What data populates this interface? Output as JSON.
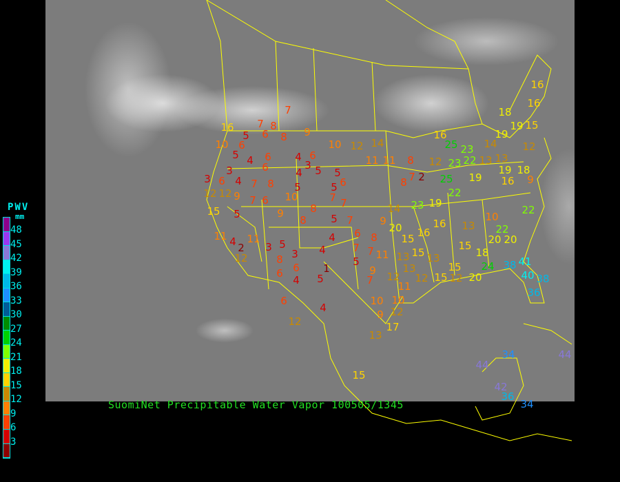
{
  "title": "SuomiNet Precipitable Water Vapor 100505/1345",
  "legend": {
    "title": "PWV",
    "unit": "mm",
    "labels": [
      "48",
      "45",
      "42",
      "39",
      "36",
      "33",
      "30",
      "27",
      "24",
      "21",
      "18",
      "15",
      "12",
      "9",
      "6",
      "3"
    ],
    "colors": [
      "#8c008c",
      "#9a38f0",
      "#8878d8",
      "#00f0f0",
      "#00b8e8",
      "#1e90ff",
      "#005c98",
      "#008c00",
      "#00d000",
      "#80ff00",
      "#f0f000",
      "#ffd400",
      "#c88a00",
      "#ff8000",
      "#ff4000",
      "#d40000",
      "#8c0000"
    ]
  },
  "boundary_color": "#ffff00",
  "stations": [
    7,
    7,
    8,
    9,
    6,
    5,
    8,
    10,
    12,
    14,
    16,
    10,
    6,
    5,
    3,
    4,
    6,
    4,
    6,
    3,
    6,
    4,
    5,
    5,
    11,
    11,
    8,
    3,
    6,
    4,
    7,
    8,
    5,
    5,
    6,
    12,
    12,
    9,
    7,
    6,
    10,
    7,
    7,
    8,
    9,
    5,
    15,
    8,
    5,
    7,
    11,
    4,
    2,
    12,
    11,
    3,
    5,
    8,
    3,
    4,
    4,
    1,
    6,
    6,
    4,
    5,
    7,
    5,
    6,
    8,
    7,
    9,
    7,
    11,
    13,
    15,
    9,
    20,
    14,
    15,
    16,
    12,
    11,
    13,
    12,
    10,
    10,
    9,
    12,
    13,
    17,
    6,
    4,
    12,
    15,
    8,
    7,
    2,
    23,
    19,
    16,
    13,
    15,
    15,
    12,
    13,
    15,
    18,
    20,
    22,
    10,
    20,
    22,
    24,
    38,
    41,
    20,
    36,
    38,
    19,
    25,
    22,
    12,
    23,
    25,
    23,
    16,
    22,
    13,
    13,
    19,
    16,
    18,
    9,
    19,
    18,
    19,
    15,
    12,
    16,
    16,
    14,
    34,
    44,
    42,
    36,
    34,
    44,
    40
  ]
}
